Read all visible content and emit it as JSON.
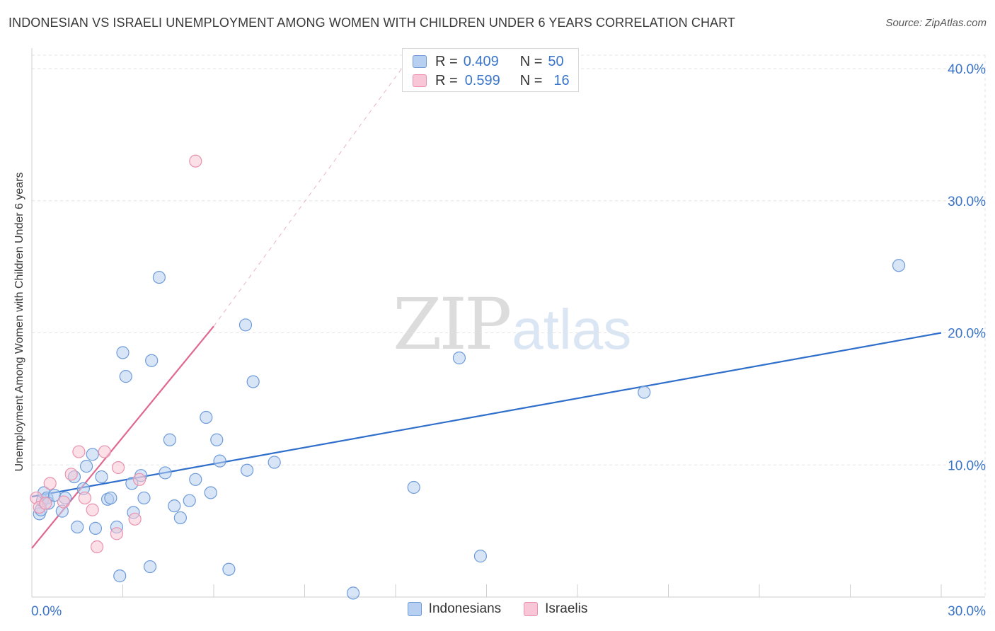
{
  "title": "INDONESIAN VS ISRAELI UNEMPLOYMENT AMONG WOMEN WITH CHILDREN UNDER 6 YEARS CORRELATION CHART",
  "source": "Source: ZipAtlas.com",
  "watermark": {
    "zip": "ZIP",
    "atlas": "atlas"
  },
  "legend": {
    "rows": [
      {
        "r_label": "R =",
        "r_value": "0.409",
        "n_label": "N =",
        "n_value": "50"
      },
      {
        "r_label": "R =",
        "r_value": "0.599",
        "n_label": "N =",
        "n_value": "16"
      }
    ]
  },
  "colors": {
    "indonesians_fill": "#b7cff0",
    "indonesians_stroke": "#6e9bd8",
    "indonesians_line": "#2f6fcb",
    "israelis_fill": "#f8c6d6",
    "israelis_stroke": "#e892ae",
    "israelis_line": "#e06890",
    "tick_label": "#3a74c9",
    "grid": "#e3e3e3"
  },
  "chart_data": {
    "type": "scatter",
    "title": "INDONESIAN VS ISRAELI UNEMPLOYMENT AMONG WOMEN WITH CHILDREN UNDER 6 YEARS CORRELATION CHART",
    "xlabel": "",
    "ylabel": "Unemployment Among Women with Children Under 6 years",
    "xlim": [
      0,
      30
    ],
    "ylim": [
      0,
      40
    ],
    "x_tick_labels": [
      {
        "value": 0,
        "label": "0.0%"
      },
      {
        "value": 30,
        "label": "30.0%"
      }
    ],
    "y_tick_labels": [
      {
        "value": 10,
        "label": "10.0%"
      },
      {
        "value": 20,
        "label": "20.0%"
      },
      {
        "value": 30,
        "label": "30.0%"
      },
      {
        "value": 40,
        "label": "40.0%"
      }
    ],
    "grid": true,
    "legend_position": "bottom",
    "series": [
      {
        "name": "Indonesians",
        "r": 0.409,
        "n": 50,
        "points": [
          [
            0.25,
            6.3
          ],
          [
            0.3,
            6.6
          ],
          [
            0.35,
            7.3
          ],
          [
            0.4,
            7.9
          ],
          [
            0.5,
            7.5
          ],
          [
            0.55,
            7.1
          ],
          [
            0.75,
            7.7
          ],
          [
            1.0,
            6.5
          ],
          [
            1.1,
            7.5
          ],
          [
            1.4,
            9.1
          ],
          [
            1.5,
            5.3
          ],
          [
            1.7,
            8.2
          ],
          [
            1.8,
            9.9
          ],
          [
            2.0,
            10.8
          ],
          [
            2.1,
            5.2
          ],
          [
            2.3,
            9.1
          ],
          [
            2.5,
            7.4
          ],
          [
            2.6,
            7.5
          ],
          [
            2.8,
            5.3
          ],
          [
            2.9,
            1.6
          ],
          [
            3.0,
            18.5
          ],
          [
            3.1,
            16.7
          ],
          [
            3.3,
            8.6
          ],
          [
            3.35,
            6.4
          ],
          [
            3.6,
            9.2
          ],
          [
            3.7,
            7.5
          ],
          [
            3.9,
            2.3
          ],
          [
            3.95,
            17.9
          ],
          [
            4.2,
            24.2
          ],
          [
            4.4,
            9.4
          ],
          [
            4.55,
            11.9
          ],
          [
            4.7,
            6.9
          ],
          [
            4.9,
            6.0
          ],
          [
            5.2,
            7.3
          ],
          [
            5.4,
            8.9
          ],
          [
            5.75,
            13.6
          ],
          [
            5.9,
            7.9
          ],
          [
            6.1,
            11.9
          ],
          [
            6.2,
            10.3
          ],
          [
            6.5,
            2.1
          ],
          [
            7.05,
            20.6
          ],
          [
            7.1,
            9.6
          ],
          [
            7.3,
            16.3
          ],
          [
            8.0,
            10.2
          ],
          [
            10.6,
            0.3
          ],
          [
            12.6,
            8.3
          ],
          [
            14.1,
            18.1
          ],
          [
            14.8,
            3.1
          ],
          [
            20.2,
            15.5
          ],
          [
            28.6,
            25.1
          ]
        ]
      },
      {
        "name": "Israelis",
        "r": 0.599,
        "n": 16,
        "points": [
          [
            0.15,
            7.5
          ],
          [
            0.25,
            6.8
          ],
          [
            0.45,
            7.1
          ],
          [
            0.6,
            8.6
          ],
          [
            1.05,
            7.2
          ],
          [
            1.3,
            9.3
          ],
          [
            1.55,
            11.0
          ],
          [
            1.75,
            7.5
          ],
          [
            2.0,
            6.6
          ],
          [
            2.15,
            3.8
          ],
          [
            2.4,
            11.0
          ],
          [
            2.8,
            4.8
          ],
          [
            2.85,
            9.8
          ],
          [
            3.4,
            5.9
          ],
          [
            3.55,
            8.9
          ],
          [
            5.4,
            33.0
          ]
        ]
      }
    ],
    "trendlines": [
      {
        "series": "Indonesians",
        "from": [
          0,
          7.6
        ],
        "to": [
          30,
          20.0
        ],
        "style": "solid"
      },
      {
        "series": "Israelis",
        "from": [
          0,
          3.7
        ],
        "to": [
          6.0,
          20.5
        ],
        "style": "solid"
      },
      {
        "series": "Israelis",
        "from": [
          6.0,
          20.5
        ],
        "to": [
          12.2,
          40.0
        ],
        "style": "dashed"
      }
    ],
    "legend": [
      "Indonesians",
      "Israelis"
    ]
  }
}
